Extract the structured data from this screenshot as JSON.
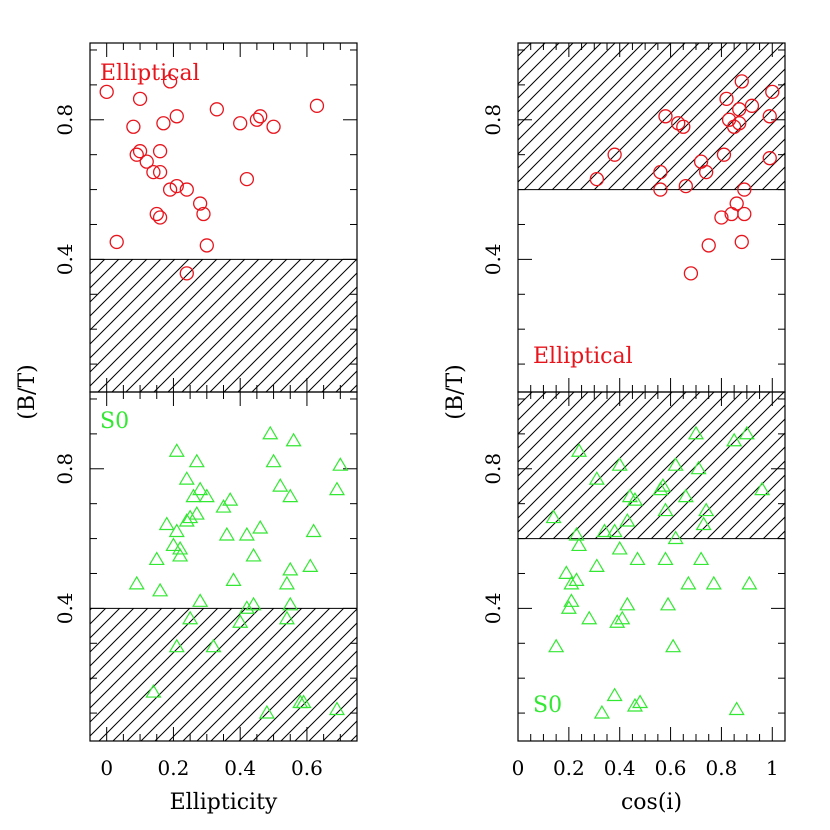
{
  "chart_data": [
    {
      "type": "scatter",
      "panel": "top-left",
      "label": "Elliptical",
      "label_color": "#e8141c",
      "marker": "circle",
      "xlabel": "",
      "ylabel": "(B/T)",
      "xlim": [
        -0.05,
        0.75
      ],
      "ylim": [
        0.02,
        1.02
      ],
      "hatch": {
        "y_from": 0.02,
        "y_to": 0.4
      },
      "yticks": [
        0.4,
        0.8
      ],
      "xticks": [],
      "points": [
        [
          0.0,
          0.88
        ],
        [
          0.03,
          0.45
        ],
        [
          0.08,
          0.78
        ],
        [
          0.09,
          0.7
        ],
        [
          0.1,
          0.86
        ],
        [
          0.1,
          0.71
        ],
        [
          0.12,
          0.68
        ],
        [
          0.14,
          0.65
        ],
        [
          0.15,
          0.53
        ],
        [
          0.16,
          0.52
        ],
        [
          0.16,
          0.65
        ],
        [
          0.16,
          0.71
        ],
        [
          0.17,
          0.79
        ],
        [
          0.19,
          0.6
        ],
        [
          0.19,
          0.91
        ],
        [
          0.21,
          0.81
        ],
        [
          0.21,
          0.61
        ],
        [
          0.24,
          0.6
        ],
        [
          0.24,
          0.36
        ],
        [
          0.28,
          0.56
        ],
        [
          0.29,
          0.53
        ],
        [
          0.3,
          0.44
        ],
        [
          0.33,
          0.83
        ],
        [
          0.4,
          0.79
        ],
        [
          0.42,
          0.63
        ],
        [
          0.45,
          0.8
        ],
        [
          0.46,
          0.81
        ],
        [
          0.5,
          0.78
        ],
        [
          0.63,
          0.84
        ]
      ]
    },
    {
      "type": "scatter",
      "panel": "bottom-left",
      "label": "S0",
      "label_color": "#33e833",
      "marker": "triangle",
      "xlabel": "Ellipticity",
      "ylabel": "",
      "xlim": [
        -0.05,
        0.75
      ],
      "ylim": [
        0.02,
        1.02
      ],
      "hatch": {
        "y_from": 0.02,
        "y_to": 0.4
      },
      "yticks": [
        0.4,
        0.8
      ],
      "xticks": [
        "0",
        "0.2",
        "0.4",
        "0.6"
      ],
      "xtick_values": [
        0,
        0.2,
        0.4,
        0.6
      ],
      "points": [
        [
          0.09,
          0.47
        ],
        [
          0.14,
          0.16
        ],
        [
          0.15,
          0.54
        ],
        [
          0.16,
          0.45
        ],
        [
          0.18,
          0.64
        ],
        [
          0.2,
          0.58
        ],
        [
          0.21,
          0.29
        ],
        [
          0.21,
          0.62
        ],
        [
          0.21,
          0.85
        ],
        [
          0.22,
          0.57
        ],
        [
          0.22,
          0.55
        ],
        [
          0.24,
          0.65
        ],
        [
          0.24,
          0.77
        ],
        [
          0.25,
          0.37
        ],
        [
          0.25,
          0.66
        ],
        [
          0.26,
          0.72
        ],
        [
          0.27,
          0.82
        ],
        [
          0.27,
          0.67
        ],
        [
          0.28,
          0.74
        ],
        [
          0.28,
          0.42
        ],
        [
          0.3,
          0.72
        ],
        [
          0.32,
          0.29
        ],
        [
          0.35,
          0.69
        ],
        [
          0.36,
          0.61
        ],
        [
          0.37,
          0.71
        ],
        [
          0.38,
          0.48
        ],
        [
          0.4,
          0.36
        ],
        [
          0.42,
          0.4
        ],
        [
          0.42,
          0.61
        ],
        [
          0.44,
          0.41
        ],
        [
          0.44,
          0.55
        ],
        [
          0.46,
          0.63
        ],
        [
          0.48,
          0.1
        ],
        [
          0.49,
          0.9
        ],
        [
          0.5,
          0.82
        ],
        [
          0.52,
          0.75
        ],
        [
          0.54,
          0.47
        ],
        [
          0.54,
          0.37
        ],
        [
          0.55,
          0.72
        ],
        [
          0.55,
          0.51
        ],
        [
          0.55,
          0.41
        ],
        [
          0.56,
          0.88
        ],
        [
          0.58,
          0.13
        ],
        [
          0.59,
          0.13
        ],
        [
          0.61,
          0.52
        ],
        [
          0.62,
          0.62
        ],
        [
          0.69,
          0.74
        ],
        [
          0.69,
          0.11
        ],
        [
          0.7,
          0.81
        ]
      ]
    },
    {
      "type": "scatter",
      "panel": "top-right",
      "label": "Elliptical",
      "label_color": "#e8141c",
      "marker": "circle",
      "xlabel": "",
      "ylabel": "(B/T)",
      "xlim": [
        0,
        1.05
      ],
      "ylim": [
        0.02,
        1.02
      ],
      "hatch": {
        "y_from": 0.6,
        "y_to": 1.02
      },
      "yticks": [
        0.4,
        0.8
      ],
      "xticks": [],
      "points": [
        [
          0.31,
          0.63
        ],
        [
          0.38,
          0.7
        ],
        [
          0.56,
          0.6
        ],
        [
          0.56,
          0.65
        ],
        [
          0.58,
          0.81
        ],
        [
          0.63,
          0.79
        ],
        [
          0.65,
          0.78
        ],
        [
          0.66,
          0.61
        ],
        [
          0.68,
          0.36
        ],
        [
          0.72,
          0.68
        ],
        [
          0.74,
          0.65
        ],
        [
          0.75,
          0.44
        ],
        [
          0.8,
          0.52
        ],
        [
          0.81,
          0.7
        ],
        [
          0.82,
          0.86
        ],
        [
          0.83,
          0.8
        ],
        [
          0.84,
          0.53
        ],
        [
          0.85,
          0.78
        ],
        [
          0.86,
          0.56
        ],
        [
          0.87,
          0.79
        ],
        [
          0.87,
          0.83
        ],
        [
          0.88,
          0.45
        ],
        [
          0.88,
          0.91
        ],
        [
          0.89,
          0.53
        ],
        [
          0.89,
          0.6
        ],
        [
          0.92,
          0.84
        ],
        [
          0.99,
          0.69
        ],
        [
          0.99,
          0.81
        ],
        [
          1.0,
          0.88
        ]
      ]
    },
    {
      "type": "scatter",
      "panel": "bottom-right",
      "label": "S0",
      "label_color": "#33e833",
      "marker": "triangle",
      "xlabel": "cos(i)",
      "ylabel": "",
      "xlim": [
        0,
        1.05
      ],
      "ylim": [
        0.02,
        1.02
      ],
      "hatch": {
        "y_from": 0.6,
        "y_to": 1.02
      },
      "yticks": [
        0.4,
        0.8
      ],
      "xticks": [
        "0",
        "0.2",
        "0.4",
        "0.6",
        "0.8",
        "1"
      ],
      "xtick_values": [
        0,
        0.2,
        0.4,
        0.6,
        0.8,
        1.0
      ],
      "points": [
        [
          0.14,
          0.66
        ],
        [
          0.15,
          0.29
        ],
        [
          0.19,
          0.5
        ],
        [
          0.2,
          0.4
        ],
        [
          0.21,
          0.47
        ],
        [
          0.21,
          0.42
        ],
        [
          0.23,
          0.61
        ],
        [
          0.23,
          0.48
        ],
        [
          0.24,
          0.85
        ],
        [
          0.24,
          0.58
        ],
        [
          0.28,
          0.37
        ],
        [
          0.31,
          0.52
        ],
        [
          0.31,
          0.77
        ],
        [
          0.33,
          0.1
        ],
        [
          0.34,
          0.62
        ],
        [
          0.38,
          0.15
        ],
        [
          0.38,
          0.62
        ],
        [
          0.39,
          0.36
        ],
        [
          0.4,
          0.81
        ],
        [
          0.4,
          0.57
        ],
        [
          0.41,
          0.37
        ],
        [
          0.43,
          0.65
        ],
        [
          0.43,
          0.41
        ],
        [
          0.44,
          0.72
        ],
        [
          0.46,
          0.12
        ],
        [
          0.46,
          0.71
        ],
        [
          0.47,
          0.54
        ],
        [
          0.48,
          0.13
        ],
        [
          0.56,
          0.74
        ],
        [
          0.57,
          0.75
        ],
        [
          0.58,
          0.68
        ],
        [
          0.58,
          0.54
        ],
        [
          0.59,
          0.41
        ],
        [
          0.61,
          0.29
        ],
        [
          0.62,
          0.6
        ],
        [
          0.62,
          0.81
        ],
        [
          0.66,
          0.72
        ],
        [
          0.67,
          0.47
        ],
        [
          0.7,
          0.9
        ],
        [
          0.71,
          0.8
        ],
        [
          0.72,
          0.54
        ],
        [
          0.73,
          0.64
        ],
        [
          0.74,
          0.68
        ],
        [
          0.77,
          0.47
        ],
        [
          0.85,
          0.88
        ],
        [
          0.86,
          0.11
        ],
        [
          0.9,
          0.9
        ],
        [
          0.91,
          0.47
        ],
        [
          0.96,
          0.74
        ]
      ]
    }
  ]
}
